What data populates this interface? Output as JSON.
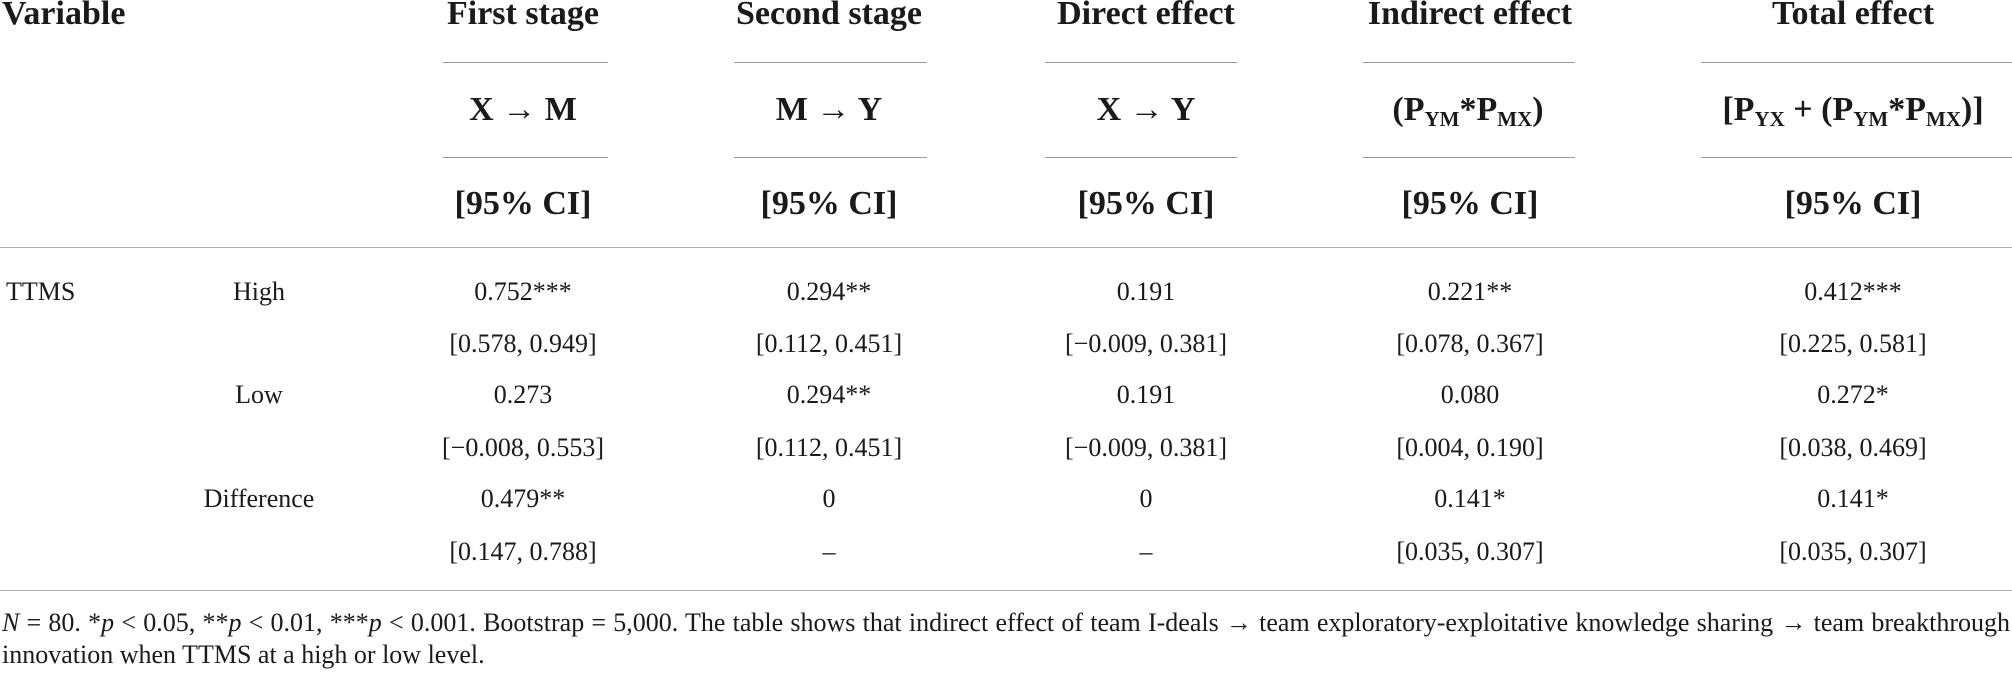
{
  "header": {
    "variable": "Variable",
    "columns": [
      {
        "title": "First stage",
        "path_a": "X",
        "arrow": "→",
        "path_b": "M",
        "ci": "[95% CI]"
      },
      {
        "title": "Second stage",
        "path_a": "M",
        "arrow": "→",
        "path_b": "Y",
        "ci": "[95% CI]"
      },
      {
        "title": "Direct effect",
        "path_a": "X",
        "arrow": "→",
        "path_b": "Y",
        "ci": "[95% CI]"
      },
      {
        "title": "Indirect effect",
        "ci": "[95% CI]"
      },
      {
        "title": "Total effect",
        "ci": "[95% CI]"
      }
    ],
    "indirect_formula": {
      "open": "(P",
      "s1": "YM",
      "mid": "*P",
      "s2": "MX",
      "close": ")"
    },
    "total_formula": {
      "open": "[P",
      "s0": "YX",
      "plus": " + (P",
      "s1": "YM",
      "mid": "*P",
      "s2": "MX",
      "close": ")]"
    }
  },
  "rows": [
    {
      "variable": "TTMS",
      "level": "High",
      "values": [
        "0.752***",
        "0.294**",
        "0.191",
        "0.221**",
        "0.412***"
      ],
      "ci": [
        "[0.578, 0.949]",
        "[0.112, 0.451]",
        "[−0.009, 0.381]",
        "[0.078, 0.367]",
        "[0.225, 0.581]"
      ]
    },
    {
      "variable": "",
      "level": "Low",
      "values": [
        "0.273",
        "0.294**",
        "0.191",
        "0.080",
        "0.272*"
      ],
      "ci": [
        "[−0.008, 0.553]",
        "[0.112, 0.451]",
        "[−0.009, 0.381]",
        "[0.004, 0.190]",
        "[0.038, 0.469]"
      ]
    },
    {
      "variable": "",
      "level": "Difference",
      "values": [
        "0.479**",
        "0",
        "0",
        "0.141*",
        "0.141*"
      ],
      "ci": [
        "[0.147, 0.788]",
        "–",
        "–",
        "[0.035, 0.307]",
        "[0.035, 0.307]"
      ]
    }
  ],
  "note": {
    "n_label": "N",
    "n_rest": " = 80. *",
    "p1": "p",
    "t1": " < 0.05, **",
    "p2": "p",
    "t2": " < 0.01, ***",
    "p3": "p",
    "t3": " < 0.001. Bootstrap = 5,000. The table shows that indirect effect of team I-deals → team exploratory-exploitative knowledge sharing → team breakthrough innovation when TTMS at a high or low level."
  }
}
